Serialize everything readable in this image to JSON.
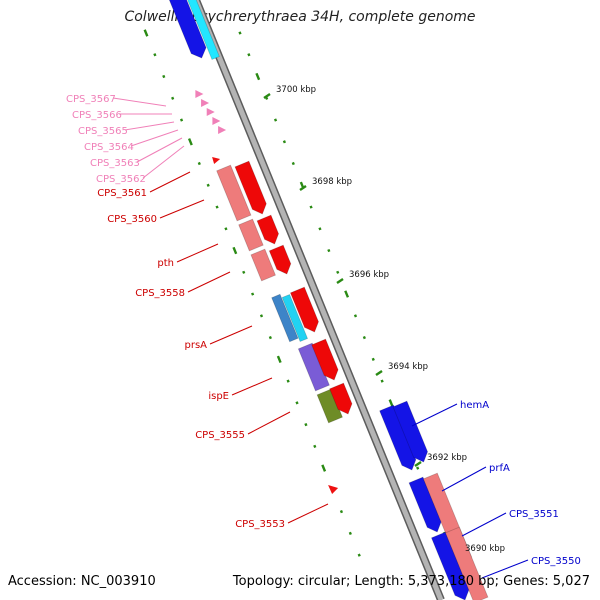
{
  "title": "Colwellia psychrerythraea 34H, complete genome",
  "footer": {
    "accession": "Accession: NC_003910",
    "info": "Topology: circular; Length: 5,373,180 bp; Genes: 5,027"
  },
  "colors": {
    "backbone": "#8a8a8a",
    "tick": "#2a8a14",
    "reverse_label": "#cc0000",
    "forward_label": "#0000cc",
    "faded_label": "#f080b8"
  },
  "kbp_ticks": [
    "3700 kbp",
    "3698 kbp",
    "3696 kbp",
    "3694 kbp",
    "3692 kbp",
    "3690 kbp"
  ],
  "faded_genes": [
    "CPS_3567",
    "CPS_3566",
    "CPS_3565",
    "CPS_3564",
    "CPS_3563",
    "CPS_3562"
  ],
  "reverse_genes": [
    "CPS_3561",
    "CPS_3560",
    "pth",
    "CPS_3558",
    "prsA",
    "ispE",
    "CPS_3555",
    "CPS_3553"
  ],
  "forward_genes": [
    "hemA",
    "prfA",
    "CPS_3551",
    "CPS_3550"
  ]
}
